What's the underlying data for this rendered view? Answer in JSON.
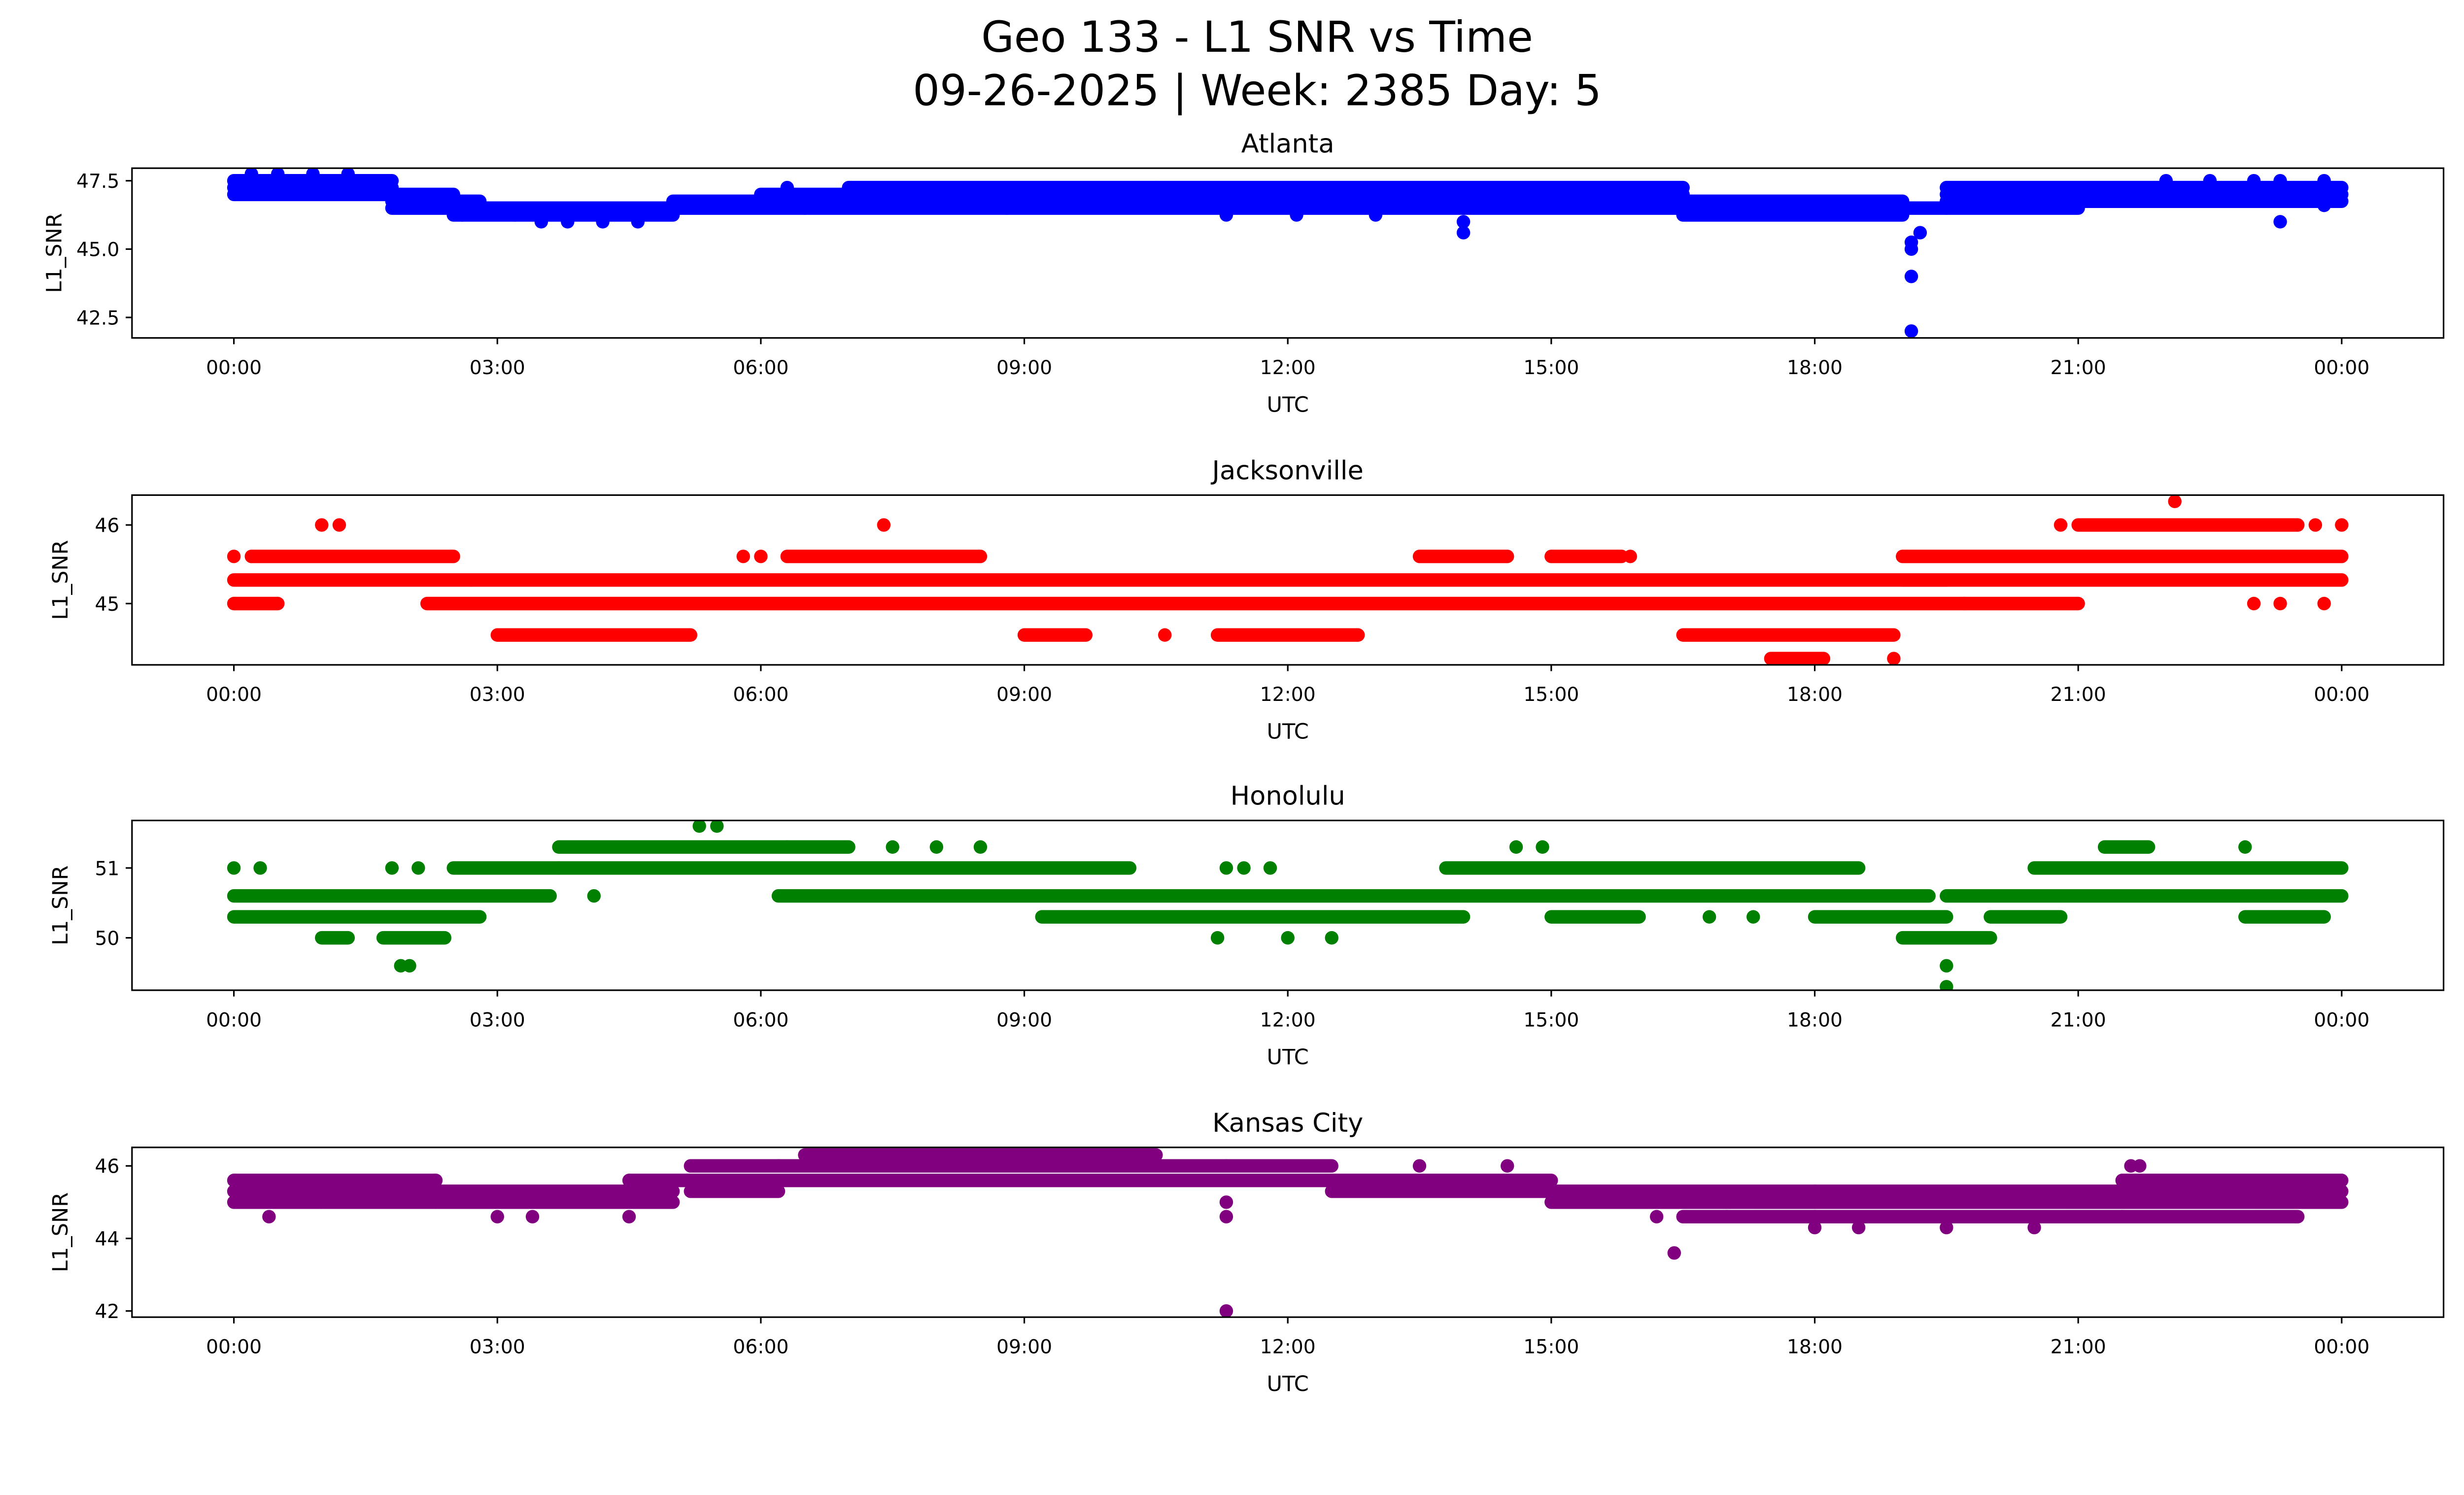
{
  "chart_data": {
    "type": "scatter",
    "title_line1": "Geo 133 - L1 SNR vs Time",
    "title_line2": "09-26-2025 | Week: 2385 Day: 5",
    "x_tick_labels": [
      "00:00",
      "03:00",
      "06:00",
      "09:00",
      "12:00",
      "15:00",
      "18:00",
      "21:00",
      "00:00"
    ],
    "x_ticks_hours": [
      0,
      3,
      6,
      9,
      12,
      15,
      18,
      21,
      24
    ],
    "xlim_hours": [
      -1.16,
      25.16
    ],
    "xlabel": "UTC",
    "ylabel": "L1_SNR",
    "grid": false,
    "panels": [
      {
        "name": "Atlanta",
        "color": "#0000ff",
        "ylim": [
          41.75,
          47.96
        ],
        "y_ticks": [
          42.5,
          45.0,
          47.5
        ],
        "y_tick_labels": [
          "42.5",
          "45.0",
          "47.5"
        ],
        "segments": [
          [
            0,
            1.8,
            47.5
          ],
          [
            0,
            1.8,
            47.25
          ],
          [
            0,
            1.8,
            47.0
          ],
          [
            1.8,
            2.5,
            47.0
          ],
          [
            1.8,
            2.8,
            46.75
          ],
          [
            1.8,
            3.2,
            46.5
          ],
          [
            2.5,
            3.2,
            46.25
          ],
          [
            3.2,
            5.0,
            46.5
          ],
          [
            3.2,
            5.0,
            46.25
          ],
          [
            5.0,
            6.0,
            46.75
          ],
          [
            5.0,
            6.5,
            46.5
          ],
          [
            6.0,
            7.0,
            47.0
          ],
          [
            6.0,
            10.5,
            46.75
          ],
          [
            7.0,
            10.5,
            47.25
          ],
          [
            7.0,
            16.5,
            47.0
          ],
          [
            10.5,
            16.5,
            46.75
          ],
          [
            6.5,
            19.0,
            46.5
          ],
          [
            10.5,
            16.5,
            47.25
          ],
          [
            16.5,
            19.0,
            46.75
          ],
          [
            16.5,
            19.0,
            46.25
          ],
          [
            19.0,
            19.5,
            46.5
          ],
          [
            19.5,
            24,
            47.25
          ],
          [
            19.5,
            24,
            47.0
          ],
          [
            19.5,
            24,
            46.75
          ],
          [
            19.5,
            21.0,
            46.5
          ]
        ],
        "points": [
          [
            0.2,
            47.75
          ],
          [
            0.5,
            47.75
          ],
          [
            0.9,
            47.75
          ],
          [
            1.3,
            47.75
          ],
          [
            3.5,
            46.0
          ],
          [
            3.8,
            46.0
          ],
          [
            4.2,
            46.0
          ],
          [
            4.6,
            46.0
          ],
          [
            2.6,
            46.25
          ],
          [
            6.3,
            47.25
          ],
          [
            8.8,
            46.5
          ],
          [
            11.3,
            46.25
          ],
          [
            12.1,
            46.25
          ],
          [
            13.0,
            46.25
          ],
          [
            14.0,
            45.6
          ],
          [
            14.0,
            46.0
          ],
          [
            19.1,
            45.25
          ],
          [
            19.1,
            45.0
          ],
          [
            19.1,
            44.0
          ],
          [
            19.1,
            42.0
          ],
          [
            19.2,
            45.6
          ],
          [
            22.0,
            47.5
          ],
          [
            22.5,
            47.5
          ],
          [
            23.0,
            47.5
          ],
          [
            23.3,
            47.5
          ],
          [
            23.3,
            46.0
          ],
          [
            23.8,
            47.5
          ],
          [
            23.8,
            46.6
          ]
        ]
      },
      {
        "name": "Jacksonville",
        "color": "#ff0000",
        "ylim": [
          44.22,
          46.38
        ],
        "y_ticks": [
          45,
          46
        ],
        "y_tick_labels": [
          "45",
          "46"
        ],
        "segments": [
          [
            0.2,
            2.5,
            45.6
          ],
          [
            0,
            2.7,
            45.3
          ],
          [
            0,
            0.5,
            45.0
          ],
          [
            2.2,
            19.7,
            45.0
          ],
          [
            2.7,
            19.5,
            45.3
          ],
          [
            3.0,
            5.2,
            44.6
          ],
          [
            6.3,
            8.5,
            45.6
          ],
          [
            9.0,
            9.7,
            44.6
          ],
          [
            11.2,
            12.8,
            44.6
          ],
          [
            13.5,
            14.5,
            45.6
          ],
          [
            15.0,
            15.8,
            45.6
          ],
          [
            16.5,
            18.9,
            44.6
          ],
          [
            17.5,
            18.1,
            44.3
          ],
          [
            19.0,
            24,
            45.6
          ],
          [
            19.0,
            24,
            45.3
          ],
          [
            19.7,
            21.0,
            45.0
          ],
          [
            21.0,
            23.5,
            46.0
          ]
        ],
        "points": [
          [
            0,
            45.6
          ],
          [
            1.0,
            46.0
          ],
          [
            1.2,
            46.0
          ],
          [
            5.8,
            45.6
          ],
          [
            6.0,
            45.6
          ],
          [
            7.4,
            46.0
          ],
          [
            10.6,
            44.6
          ],
          [
            15.9,
            45.6
          ],
          [
            18.9,
            44.3
          ],
          [
            20.8,
            46.0
          ],
          [
            22.1,
            46.3
          ],
          [
            23.7,
            46.0
          ],
          [
            24,
            46.0
          ],
          [
            23.0,
            45.0
          ],
          [
            23.3,
            45.0
          ],
          [
            23.8,
            45.0
          ]
        ]
      },
      {
        "name": "Honolulu",
        "color": "#008000",
        "ylim": [
          49.25,
          51.68
        ],
        "y_ticks": [
          50,
          51
        ],
        "y_tick_labels": [
          "50",
          "51"
        ],
        "segments": [
          [
            0,
            3.6,
            50.6
          ],
          [
            0,
            2.8,
            50.3
          ],
          [
            1.0,
            1.3,
            50.0
          ],
          [
            1.7,
            2.4,
            50.0
          ],
          [
            2.5,
            3.7,
            51.0
          ],
          [
            3.7,
            6.3,
            51.3
          ],
          [
            3.7,
            10.2,
            51.0
          ],
          [
            6.3,
            7.0,
            51.3
          ],
          [
            6.2,
            19.3,
            50.6
          ],
          [
            9.2,
            14.0,
            50.3
          ],
          [
            13.8,
            18.5,
            51.0
          ],
          [
            15.0,
            16.0,
            50.3
          ],
          [
            18.0,
            19.5,
            50.3
          ],
          [
            19.0,
            20.0,
            50.0
          ],
          [
            19.5,
            24,
            50.6
          ],
          [
            20.0,
            20.8,
            50.3
          ],
          [
            20.5,
            24,
            51.0
          ],
          [
            21.3,
            21.8,
            51.3
          ],
          [
            22.9,
            23.8,
            50.3
          ]
        ],
        "points": [
          [
            0,
            51.0
          ],
          [
            0.3,
            51.0
          ],
          [
            1.8,
            51.0
          ],
          [
            2.1,
            51.0
          ],
          [
            1.9,
            49.6
          ],
          [
            2.0,
            49.6
          ],
          [
            4.1,
            50.6
          ],
          [
            5.3,
            51.6
          ],
          [
            5.5,
            51.6
          ],
          [
            7.5,
            51.3
          ],
          [
            8.0,
            51.3
          ],
          [
            8.5,
            51.3
          ],
          [
            11.2,
            50.0
          ],
          [
            11.3,
            51.0
          ],
          [
            11.5,
            51.0
          ],
          [
            11.8,
            51.0
          ],
          [
            12.0,
            50.0
          ],
          [
            12.5,
            50.0
          ],
          [
            14.6,
            51.3
          ],
          [
            14.9,
            51.3
          ],
          [
            16.8,
            50.3
          ],
          [
            17.3,
            50.3
          ],
          [
            19.5,
            49.6
          ],
          [
            19.5,
            49.3
          ],
          [
            22.9,
            51.3
          ]
        ]
      },
      {
        "name": "Kansas City",
        "color": "#800080",
        "ylim": [
          41.83,
          46.51
        ],
        "y_ticks": [
          42,
          44,
          46
        ],
        "y_tick_labels": [
          "42",
          "44",
          "46"
        ],
        "segments": [
          [
            0,
            2.3,
            45.6
          ],
          [
            0,
            2.3,
            45.3
          ],
          [
            0,
            2.3,
            45.0
          ],
          [
            2.3,
            5.0,
            45.3
          ],
          [
            2.3,
            5.0,
            45.0
          ],
          [
            4.5,
            5.2,
            45.6
          ],
          [
            5.2,
            6.2,
            46.0
          ],
          [
            5.2,
            11.3,
            45.6
          ],
          [
            5.2,
            6.2,
            45.3
          ],
          [
            6.2,
            11.3,
            46.0
          ],
          [
            6.5,
            10.5,
            46.3
          ],
          [
            11.3,
            12.5,
            46.0
          ],
          [
            11.3,
            15.0,
            45.6
          ],
          [
            12.5,
            15.0,
            45.3
          ],
          [
            15.0,
            18.0,
            45.3
          ],
          [
            15.0,
            18.0,
            45.0
          ],
          [
            16.5,
            18.0,
            44.6
          ],
          [
            18.0,
            21.5,
            45.3
          ],
          [
            18.0,
            24,
            45.0
          ],
          [
            18.0,
            21.5,
            44.6
          ],
          [
            21.5,
            24,
            45.6
          ],
          [
            21.5,
            24,
            45.3
          ],
          [
            21.5,
            23.5,
            44.6
          ]
        ],
        "points": [
          [
            0.4,
            44.6
          ],
          [
            1.0,
            45.0
          ],
          [
            3.0,
            44.6
          ],
          [
            3.4,
            44.6
          ],
          [
            4.5,
            44.6
          ],
          [
            11.3,
            45.0
          ],
          [
            11.3,
            44.6
          ],
          [
            11.3,
            42.0
          ],
          [
            13.5,
            46.0
          ],
          [
            14.5,
            46.0
          ],
          [
            16.2,
            44.6
          ],
          [
            16.4,
            43.6
          ],
          [
            17.0,
            44.6
          ],
          [
            18.0,
            44.3
          ],
          [
            18.5,
            44.3
          ],
          [
            19.5,
            44.3
          ],
          [
            20.5,
            44.3
          ],
          [
            21.6,
            46.0
          ],
          [
            21.7,
            46.0
          ]
        ]
      }
    ]
  }
}
